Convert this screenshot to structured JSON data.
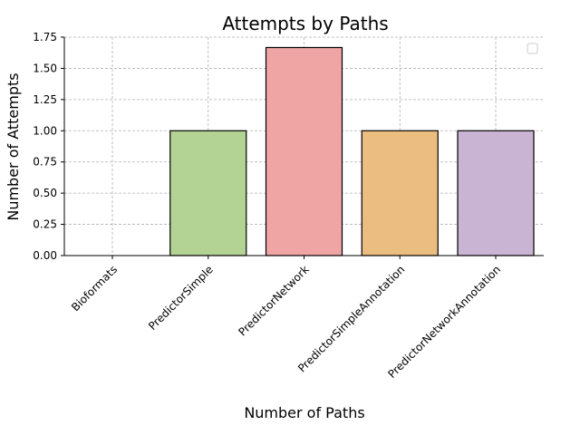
{
  "chart_data": {
    "type": "bar",
    "title": "Attempts by Paths",
    "xlabel": "Number of Paths",
    "ylabel": "Number of Attempts",
    "categories": [
      "Bioformats",
      "PredictorSimple",
      "PredictorNetwork",
      "PredictorSimpleAnnotation",
      "PredictorNetworkAnnotation"
    ],
    "values": [
      0,
      1,
      1.6667,
      1,
      1
    ],
    "colors": [
      "#a6cee3",
      "#b2d393",
      "#f0a5a5",
      "#ecbd80",
      "#c9b5d3"
    ],
    "ylim": [
      0,
      1.75
    ],
    "yticks": [
      "0.00",
      "0.25",
      "0.50",
      "0.75",
      "1.00",
      "1.25",
      "1.50",
      "1.75"
    ],
    "grid": true,
    "legend": "upper-right (empty)"
  }
}
